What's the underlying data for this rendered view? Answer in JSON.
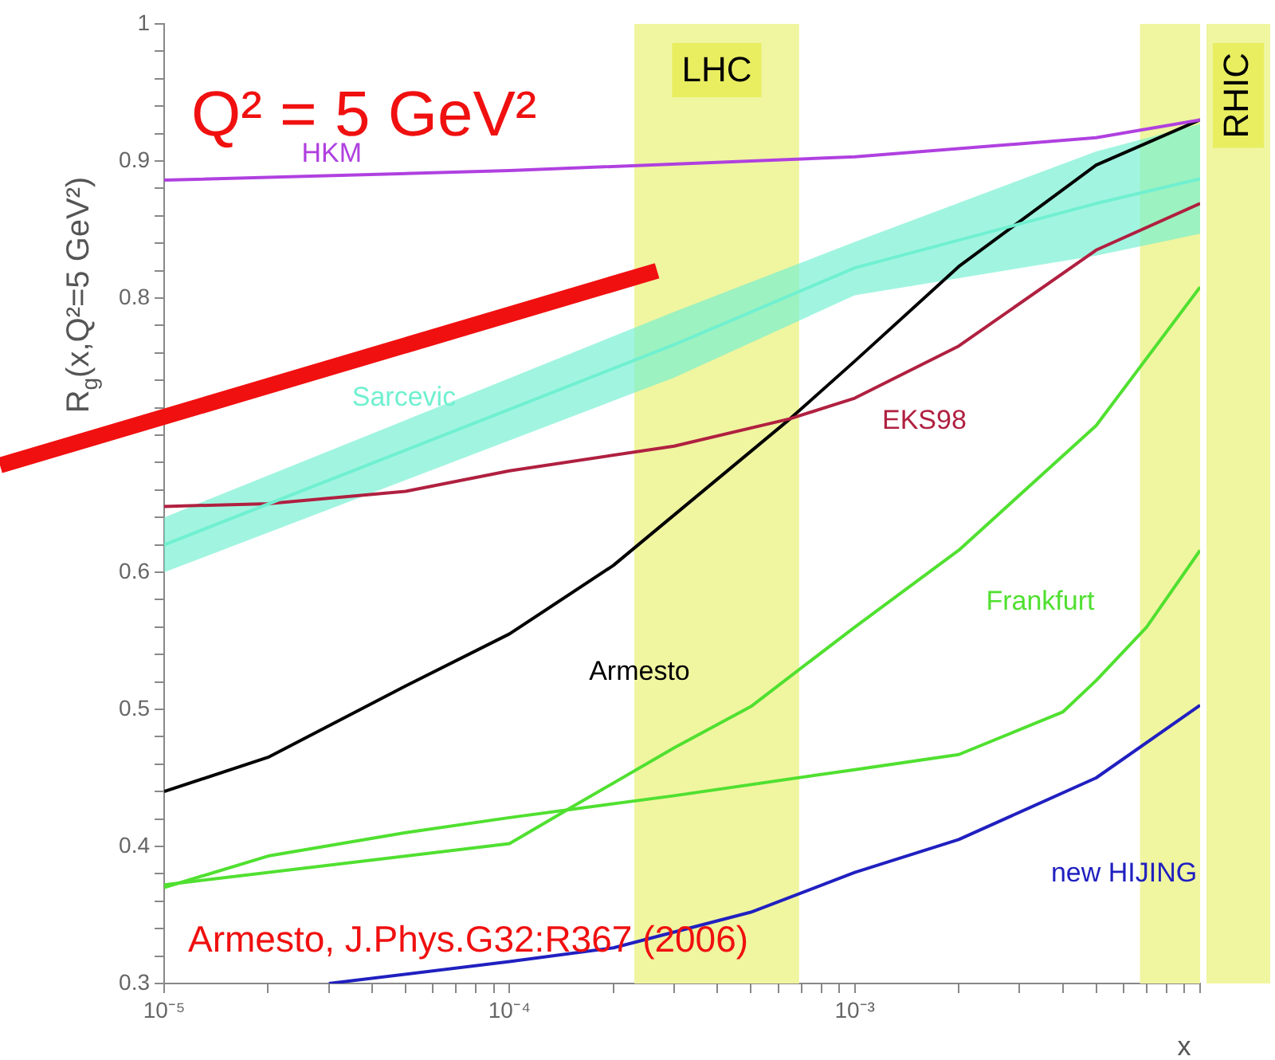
{
  "chart_data": {
    "type": "line",
    "xlabel": "x",
    "ylabel": "R$_{g}$(x,Q²=5 GeV²)",
    "log": "x",
    "grid": false,
    "legend": false,
    "marker": "none",
    "line_style": "solid",
    "xlim": [
      1e-05,
      0.01
    ],
    "ylim": [
      0.3,
      1
    ],
    "xticks": [
      {
        "value": 1e-05,
        "label": "10⁻⁵"
      },
      {
        "value": 2e-05,
        "label": null
      },
      {
        "value": 3e-05,
        "label": null
      },
      {
        "value": 4e-05,
        "label": null
      },
      {
        "value": 5e-05,
        "label": null
      },
      {
        "value": 6e-05,
        "label": null
      },
      {
        "value": 7e-05,
        "label": null
      },
      {
        "value": 8e-05,
        "label": null
      },
      {
        "value": 9e-05,
        "label": null
      },
      {
        "value": 0.0001,
        "label": "10⁻⁴"
      },
      {
        "value": 0.0002,
        "label": null
      },
      {
        "value": 0.0003,
        "label": null
      },
      {
        "value": 0.0004,
        "label": null
      },
      {
        "value": 0.0005,
        "label": null
      },
      {
        "value": 0.0006,
        "label": null
      },
      {
        "value": 0.0007,
        "label": null
      },
      {
        "value": 0.0008,
        "label": null
      },
      {
        "value": 0.0009,
        "label": null
      },
      {
        "value": 0.001,
        "label": "10⁻³"
      },
      {
        "value": 0.002,
        "label": null
      },
      {
        "value": 0.003,
        "label": null
      },
      {
        "value": 0.004,
        "label": null
      },
      {
        "value": 0.005,
        "label": null
      },
      {
        "value": 0.006,
        "label": null
      },
      {
        "value": 0.007,
        "label": null
      },
      {
        "value": 0.008,
        "label": null
      },
      {
        "value": 0.009,
        "label": null
      },
      {
        "value": 0.01,
        "label": null
      }
    ],
    "yticks": [
      0.3,
      {
        "value": 0.32,
        "label": null
      },
      {
        "value": 0.34,
        "label": null
      },
      {
        "value": 0.36,
        "label": null
      },
      {
        "value": 0.38,
        "label": null
      },
      0.4,
      {
        "value": 0.42,
        "label": null
      },
      {
        "value": 0.44,
        "label": null
      },
      {
        "value": 0.46,
        "label": null
      },
      {
        "value": 0.48,
        "label": null
      },
      0.5,
      {
        "value": 0.52,
        "label": null
      },
      {
        "value": 0.54,
        "label": null
      },
      {
        "value": 0.56,
        "label": null
      },
      {
        "value": 0.58,
        "label": null
      },
      0.6,
      {
        "value": 0.62,
        "label": null
      },
      {
        "value": 0.64,
        "label": null
      },
      {
        "value": 0.66,
        "label": null
      },
      {
        "value": 0.68,
        "label": null
      },
      {
        "value": 0.7,
        "label": null
      },
      {
        "value": 0.72,
        "label": null
      },
      {
        "value": 0.74,
        "label": null
      },
      {
        "value": 0.76,
        "label": null
      },
      {
        "value": 0.78,
        "label": null
      },
      0.8,
      {
        "value": 0.82,
        "label": null
      },
      {
        "value": 0.84,
        "label": null
      },
      {
        "value": 0.86,
        "label": null
      },
      {
        "value": 0.88,
        "label": null
      },
      0.9,
      {
        "value": 0.92,
        "label": null
      },
      {
        "value": 0.94,
        "label": null
      },
      {
        "value": 0.96,
        "label": null
      },
      {
        "value": 0.98,
        "label": null
      },
      1
    ],
    "bands": [
      {
        "axis": "x",
        "from": 0.00023,
        "to": 0.00069,
        "label": "LHC",
        "color": "#f0f5a0"
      },
      {
        "axis": "x",
        "from": 0.0067,
        "to": 0.01,
        "label": "RHIC",
        "color": "#f0f5a0"
      }
    ],
    "series": [
      {
        "name": "HKM",
        "color": "#b040e0",
        "x": [
          1e-05,
          0.0001,
          0.001,
          0.005,
          0.01
        ],
        "values": [
          0.886,
          0.893,
          0.903,
          0.917,
          0.93
        ]
      },
      {
        "name": "Sarcevic",
        "color": "#70f0d0",
        "x": [
          1e-05,
          0.0003,
          0.001,
          0.005,
          0.01
        ],
        "values": [
          0.62,
          0.766,
          0.822,
          0.869,
          0.887
        ],
        "lower": [
          0.6,
          0.742,
          0.802,
          0.831,
          0.847
        ],
        "upper": [
          0.64,
          0.79,
          0.841,
          0.907,
          0.927
        ]
      },
      {
        "name": "EKS98",
        "color": "#b02040",
        "x": [
          1e-05,
          2e-05,
          5e-05,
          0.0001,
          0.0003,
          0.00065,
          0.001,
          0.002,
          0.005,
          0.01
        ],
        "values": [
          0.648,
          0.65,
          0.659,
          0.674,
          0.692,
          0.712,
          0.727,
          0.765,
          0.835,
          0.869
        ]
      },
      {
        "name": "Armesto",
        "color": "#000000",
        "x": [
          1e-05,
          2e-05,
          5e-05,
          0.0001,
          0.0002,
          0.00065,
          0.001,
          0.002,
          0.005,
          0.01
        ],
        "values": [
          0.44,
          0.465,
          0.517,
          0.555,
          0.605,
          0.712,
          0.754,
          0.823,
          0.897,
          0.93
        ]
      },
      {
        "name": "Frankfurt",
        "color": "#50e030",
        "x": [
          1e-05,
          0.0001,
          0.00015,
          0.0003,
          0.0005,
          0.001,
          0.002,
          0.005,
          0.01
        ],
        "values": [
          0.372,
          0.402,
          0.428,
          0.472,
          0.502,
          0.56,
          0.616,
          0.707,
          0.808
        ]
      },
      {
        "color": "#50e030",
        "x": [
          1e-05,
          2e-05,
          5e-05,
          0.0001,
          0.0003,
          0.001,
          0.002,
          0.004,
          0.005,
          0.007,
          0.01
        ],
        "values": [
          0.37,
          0.393,
          0.41,
          0.421,
          0.437,
          0.456,
          0.467,
          0.498,
          0.521,
          0.56,
          0.616
        ]
      },
      {
        "name": "new HIJING",
        "color": "#2020c0",
        "x": [
          3e-05,
          0.0001,
          0.0002,
          0.0005,
          0.001,
          0.002,
          0.005,
          0.01
        ],
        "values": [
          0.3,
          0.316,
          0.326,
          0.352,
          0.381,
          0.405,
          0.45,
          0.503
        ]
      }
    ],
    "annotations": [
      "Q² = 5 GeV²",
      "Armesto, J.Phys.G32:R367 (2006)"
    ]
  }
}
